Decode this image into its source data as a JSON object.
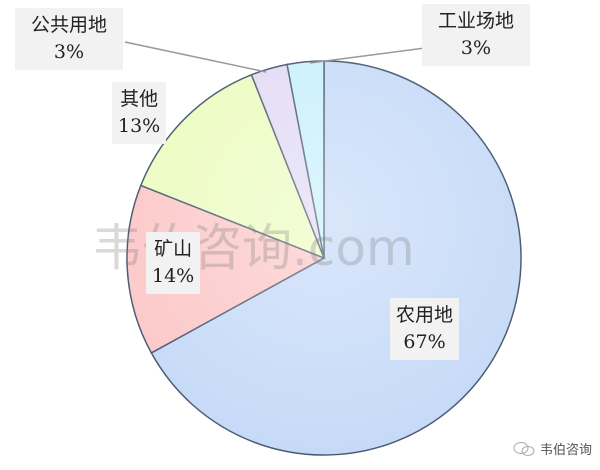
{
  "chart_data": {
    "type": "pie",
    "start": "12 o'clock, clockwise",
    "slices": [
      {
        "label": "农用地",
        "value": 67,
        "pct_label": "67%",
        "color": "#c6daf8"
      },
      {
        "label": "矿山",
        "value": 14,
        "pct_label": "14%",
        "color": "#fcc8c8"
      },
      {
        "label": "其他",
        "value": 13,
        "pct_label": "13%",
        "color": "#ecfcc0"
      },
      {
        "label": "公共用地",
        "value": 3,
        "pct_label": "3%",
        "color": "#e2daf4"
      },
      {
        "label": "工业场地",
        "value": 3,
        "pct_label": "3%",
        "color": "#c8f0fc"
      }
    ]
  },
  "watermark": "韦伯咨询.com",
  "brand": {
    "name": "韦伯咨询",
    "icon": "wechat-icon"
  }
}
